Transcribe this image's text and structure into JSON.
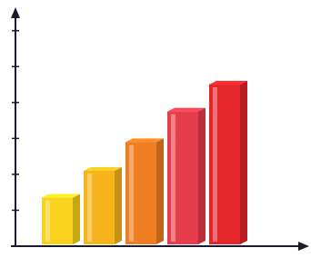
{
  "chart_data": {
    "type": "bar",
    "categories": [
      null,
      null,
      null,
      null,
      null
    ],
    "values": [
      1.35,
      2.1,
      2.9,
      3.75,
      4.5
    ],
    "colors": [
      "#f8d21c",
      "#f6b51d",
      "#ef7d22",
      "#e63c4c",
      "#e3262b"
    ],
    "ylim": [
      0,
      6.6
    ],
    "yticks": [
      1,
      2,
      3,
      4,
      5,
      6
    ],
    "grid": false
  }
}
